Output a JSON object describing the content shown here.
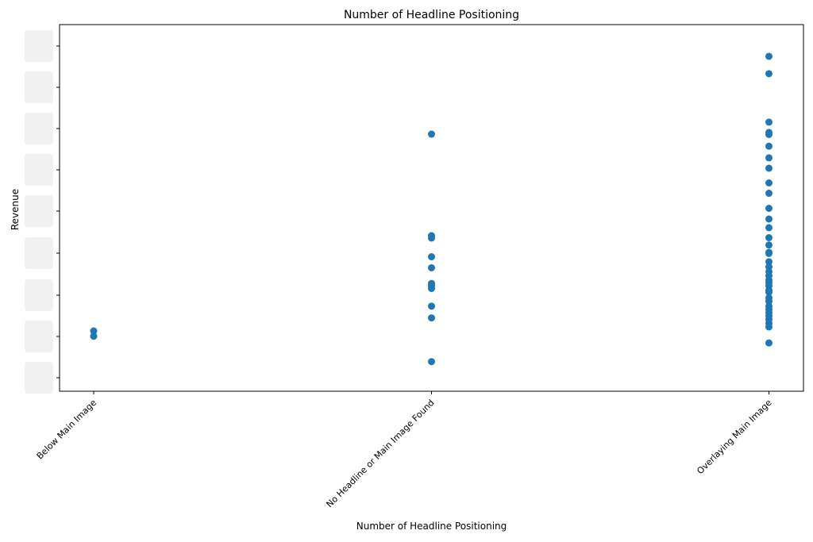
{
  "chart_data": {
    "type": "scatter",
    "title": "Number of Headline Positioning",
    "xlabel": "Number of Headline Positioning",
    "ylabel": "Revenue",
    "categories": [
      "Below Main Image",
      "No Headline or Main Image Found",
      "Overlaying Main Image"
    ],
    "y_ticks_obscured": true,
    "ylim": [
      0,
      1
    ],
    "grid": false,
    "marker_color": "#1f77b4",
    "series": [
      {
        "points": [
          {
            "x": "Below Main Image",
            "y": 0.133
          },
          {
            "x": "Below Main Image",
            "y": 0.117
          },
          {
            "x": "No Headline or Main Image Found",
            "y": 0.722
          },
          {
            "x": "No Headline or Main Image Found",
            "y": 0.418
          },
          {
            "x": "No Headline or Main Image Found",
            "y": 0.411
          },
          {
            "x": "No Headline or Main Image Found",
            "y": 0.355
          },
          {
            "x": "No Headline or Main Image Found",
            "y": 0.322
          },
          {
            "x": "No Headline or Main Image Found",
            "y": 0.275
          },
          {
            "x": "No Headline or Main Image Found",
            "y": 0.268
          },
          {
            "x": "No Headline or Main Image Found",
            "y": 0.26
          },
          {
            "x": "No Headline or Main Image Found",
            "y": 0.207
          },
          {
            "x": "No Headline or Main Image Found",
            "y": 0.172
          },
          {
            "x": "No Headline or Main Image Found",
            "y": 0.041
          },
          {
            "x": "Overlaying Main Image",
            "y": 0.955
          },
          {
            "x": "Overlaying Main Image",
            "y": 0.903
          },
          {
            "x": "Overlaying Main Image",
            "y": 0.758
          },
          {
            "x": "Overlaying Main Image",
            "y": 0.727
          },
          {
            "x": "Overlaying Main Image",
            "y": 0.721
          },
          {
            "x": "Overlaying Main Image",
            "y": 0.686
          },
          {
            "x": "Overlaying Main Image",
            "y": 0.651
          },
          {
            "x": "Overlaying Main Image",
            "y": 0.62
          },
          {
            "x": "Overlaying Main Image",
            "y": 0.576
          },
          {
            "x": "Overlaying Main Image",
            "y": 0.545
          },
          {
            "x": "Overlaying Main Image",
            "y": 0.5
          },
          {
            "x": "Overlaying Main Image",
            "y": 0.468
          },
          {
            "x": "Overlaying Main Image",
            "y": 0.442
          },
          {
            "x": "Overlaying Main Image",
            "y": 0.412
          },
          {
            "x": "Overlaying Main Image",
            "y": 0.39
          },
          {
            "x": "Overlaying Main Image",
            "y": 0.368
          },
          {
            "x": "Overlaying Main Image",
            "y": 0.365
          },
          {
            "x": "Overlaying Main Image",
            "y": 0.34
          },
          {
            "x": "Overlaying Main Image",
            "y": 0.325
          },
          {
            "x": "Overlaying Main Image",
            "y": 0.31
          },
          {
            "x": "Overlaying Main Image",
            "y": 0.298
          },
          {
            "x": "Overlaying Main Image",
            "y": 0.285
          },
          {
            "x": "Overlaying Main Image",
            "y": 0.278
          },
          {
            "x": "Overlaying Main Image",
            "y": 0.268
          },
          {
            "x": "Overlaying Main Image",
            "y": 0.255
          },
          {
            "x": "Overlaying Main Image",
            "y": 0.249
          },
          {
            "x": "Overlaying Main Image",
            "y": 0.232
          },
          {
            "x": "Overlaying Main Image",
            "y": 0.222
          },
          {
            "x": "Overlaying Main Image",
            "y": 0.207
          },
          {
            "x": "Overlaying Main Image",
            "y": 0.198
          },
          {
            "x": "Overlaying Main Image",
            "y": 0.188
          },
          {
            "x": "Overlaying Main Image",
            "y": 0.178
          },
          {
            "x": "Overlaying Main Image",
            "y": 0.168
          },
          {
            "x": "Overlaying Main Image",
            "y": 0.156
          },
          {
            "x": "Overlaying Main Image",
            "y": 0.145
          },
          {
            "x": "Overlaying Main Image",
            "y": 0.097
          }
        ]
      }
    ]
  }
}
